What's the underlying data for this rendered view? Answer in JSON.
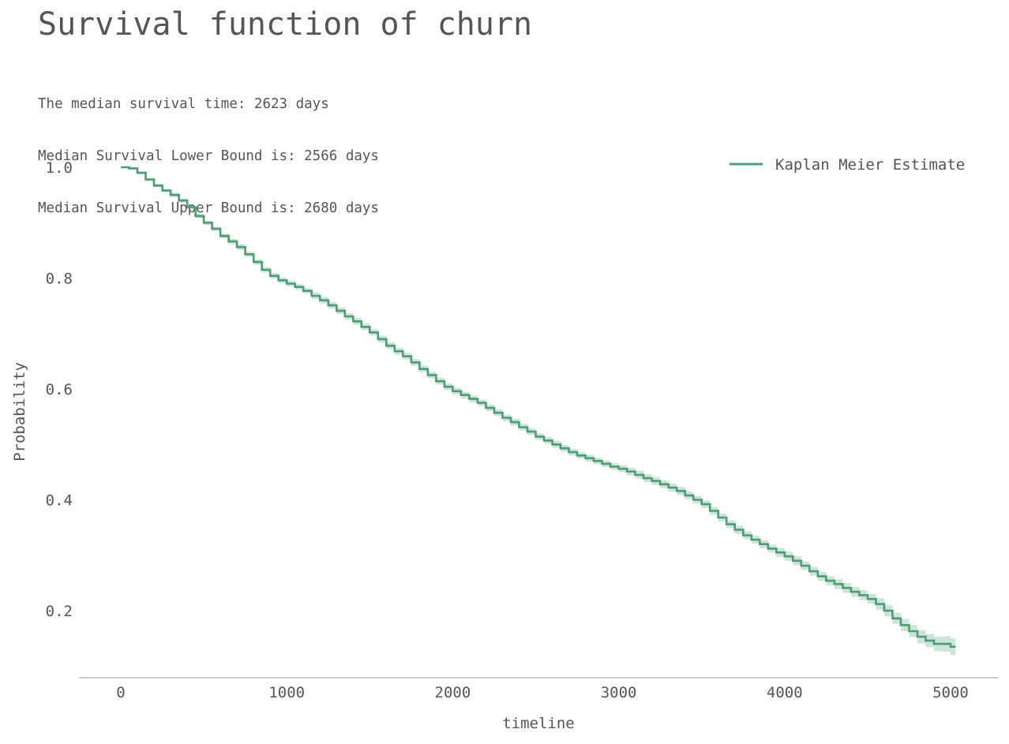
{
  "chart_data": {
    "type": "line",
    "title": "Survival function of churn",
    "subtitle_lines": [
      "The median survival time: 2623 days",
      "Median Survival Lower Bound is: 2566 days",
      "Median Survival Upper Bound is: 2680 days"
    ],
    "xlabel": "timeline",
    "ylabel": "Probability",
    "xlim": [
      -250,
      5280
    ],
    "ylim": [
      0.08,
      1.06
    ],
    "xticks": [
      0,
      1000,
      2000,
      3000,
      4000,
      5000
    ],
    "yticks": [
      0.2,
      0.4,
      0.6,
      0.8,
      1.0
    ],
    "ytick_labels": [
      "0.2",
      "0.4",
      "0.6",
      "0.8",
      "1.0"
    ],
    "grid": false,
    "legend_position": "top-right",
    "series": [
      {
        "name": "Kaplan Meier Estimate",
        "color": "#4c9e72",
        "ci_color": "#4c9e72",
        "x": [
          0,
          25,
          50,
          100,
          150,
          200,
          250,
          300,
          350,
          400,
          450,
          500,
          550,
          600,
          650,
          700,
          750,
          800,
          850,
          900,
          950,
          1000,
          1050,
          1100,
          1150,
          1200,
          1250,
          1300,
          1350,
          1400,
          1450,
          1500,
          1550,
          1600,
          1650,
          1700,
          1750,
          1800,
          1850,
          1900,
          1950,
          2000,
          2050,
          2100,
          2150,
          2200,
          2250,
          2300,
          2350,
          2400,
          2450,
          2500,
          2550,
          2600,
          2650,
          2700,
          2750,
          2800,
          2850,
          2900,
          2950,
          3000,
          3050,
          3100,
          3150,
          3200,
          3250,
          3300,
          3350,
          3400,
          3450,
          3500,
          3550,
          3600,
          3650,
          3700,
          3750,
          3800,
          3850,
          3900,
          3950,
          4000,
          4050,
          4100,
          4150,
          4200,
          4250,
          4300,
          4350,
          4400,
          4450,
          4500,
          4550,
          4600,
          4650,
          4700,
          4750,
          4800,
          4850,
          4900,
          4950,
          5000,
          5030
        ],
        "y": [
          1.0,
          1.0,
          0.998,
          0.99,
          0.978,
          0.967,
          0.958,
          0.95,
          0.94,
          0.928,
          0.912,
          0.9,
          0.889,
          0.876,
          0.866,
          0.856,
          0.843,
          0.829,
          0.815,
          0.804,
          0.796,
          0.79,
          0.784,
          0.777,
          0.768,
          0.76,
          0.751,
          0.741,
          0.731,
          0.722,
          0.712,
          0.702,
          0.69,
          0.678,
          0.668,
          0.659,
          0.648,
          0.636,
          0.625,
          0.614,
          0.604,
          0.596,
          0.589,
          0.582,
          0.575,
          0.566,
          0.557,
          0.548,
          0.54,
          0.531,
          0.523,
          0.514,
          0.507,
          0.5,
          0.493,
          0.486,
          0.48,
          0.475,
          0.47,
          0.465,
          0.46,
          0.456,
          0.451,
          0.445,
          0.439,
          0.434,
          0.428,
          0.422,
          0.416,
          0.408,
          0.4,
          0.392,
          0.38,
          0.368,
          0.356,
          0.346,
          0.336,
          0.328,
          0.32,
          0.312,
          0.305,
          0.298,
          0.29,
          0.281,
          0.271,
          0.262,
          0.254,
          0.248,
          0.241,
          0.234,
          0.228,
          0.221,
          0.212,
          0.2,
          0.186,
          0.174,
          0.163,
          0.153,
          0.146,
          0.14,
          0.14,
          0.135,
          0.135
        ],
        "ci_half_width": [
          0.0,
          0.0,
          0.002,
          0.003,
          0.003,
          0.003,
          0.003,
          0.004,
          0.004,
          0.004,
          0.004,
          0.004,
          0.004,
          0.004,
          0.005,
          0.005,
          0.005,
          0.005,
          0.005,
          0.005,
          0.005,
          0.005,
          0.005,
          0.005,
          0.006,
          0.006,
          0.006,
          0.006,
          0.006,
          0.006,
          0.006,
          0.006,
          0.006,
          0.006,
          0.006,
          0.006,
          0.006,
          0.006,
          0.006,
          0.006,
          0.006,
          0.006,
          0.006,
          0.006,
          0.006,
          0.006,
          0.006,
          0.006,
          0.006,
          0.006,
          0.006,
          0.006,
          0.006,
          0.006,
          0.006,
          0.006,
          0.006,
          0.006,
          0.006,
          0.006,
          0.006,
          0.006,
          0.007,
          0.007,
          0.007,
          0.007,
          0.007,
          0.007,
          0.007,
          0.007,
          0.007,
          0.007,
          0.007,
          0.007,
          0.007,
          0.007,
          0.007,
          0.007,
          0.007,
          0.007,
          0.008,
          0.008,
          0.008,
          0.008,
          0.008,
          0.008,
          0.008,
          0.009,
          0.009,
          0.009,
          0.009,
          0.009,
          0.01,
          0.01,
          0.01,
          0.011,
          0.011,
          0.012,
          0.012,
          0.013,
          0.014,
          0.015,
          0.016
        ]
      }
    ]
  }
}
